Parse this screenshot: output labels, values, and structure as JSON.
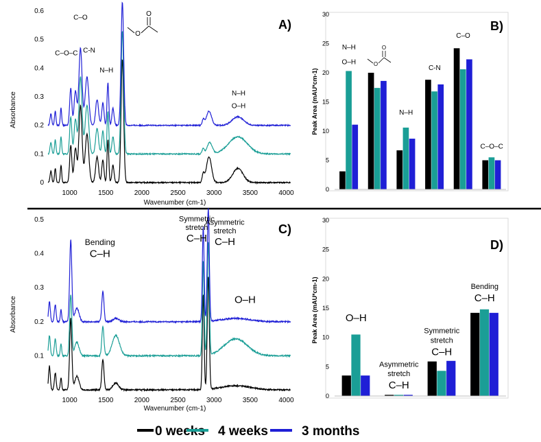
{
  "colors": {
    "s0": "#000000",
    "s1": "#1a9e96",
    "s2": "#1f1fd6"
  },
  "legend": [
    {
      "label": "0 weeks",
      "color": "#000000"
    },
    {
      "label": "4 weeks",
      "color": "#1a9e96"
    },
    {
      "label": "3 months",
      "color": "#1f1fd6"
    }
  ],
  "chart_data": [
    {
      "panel": "A)",
      "type": "line",
      "xlabel": "Wavenumber (cm-1)",
      "ylabel": "Absorbance",
      "xlim": [
        700,
        4100
      ],
      "ylim": [
        0,
        0.6
      ],
      "xticks": [
        1000,
        1500,
        2000,
        2500,
        3000,
        3500,
        4000
      ],
      "yticks": [
        0,
        0.1,
        0.2,
        0.3,
        0.4,
        0.5,
        0.6
      ],
      "ytick_labels": [
        "0",
        "0.1",
        "0.2",
        "0.3",
        "0.4",
        "0.5",
        "0.6"
      ],
      "series": [
        {
          "name": "0 weeks",
          "color": "#000000",
          "baseline": 0.0,
          "peaks": [
            [
              740,
              0.04,
              12
            ],
            [
              800,
              0.05,
              10
            ],
            [
              880,
              0.06,
              10
            ],
            [
              1015,
              0.13,
              15
            ],
            [
              1080,
              0.12,
              18
            ],
            [
              1150,
              0.27,
              22
            ],
            [
              1240,
              0.17,
              25
            ],
            [
              1380,
              0.09,
              20
            ],
            [
              1460,
              0.08,
              15
            ],
            [
              1530,
              0.15,
              12
            ],
            [
              1600,
              0.06,
              15
            ],
            [
              1730,
              0.43,
              18
            ],
            [
              2850,
              0.03,
              15
            ],
            [
              2930,
              0.09,
              35
            ],
            [
              3330,
              0.05,
              70
            ]
          ]
        },
        {
          "name": "4 weeks",
          "color": "#1a9e96",
          "baseline": 0.1,
          "peaks": [
            [
              740,
              0.04,
              12
            ],
            [
              800,
              0.05,
              10
            ],
            [
              880,
              0.06,
              10
            ],
            [
              1015,
              0.13,
              15
            ],
            [
              1080,
              0.12,
              18
            ],
            [
              1150,
              0.27,
              22
            ],
            [
              1240,
              0.17,
              25
            ],
            [
              1380,
              0.09,
              20
            ],
            [
              1460,
              0.08,
              15
            ],
            [
              1530,
              0.15,
              12
            ],
            [
              1600,
              0.06,
              15
            ],
            [
              1730,
              0.43,
              18
            ],
            [
              2850,
              0.02,
              15
            ],
            [
              2940,
              0.04,
              35
            ],
            [
              3330,
              0.06,
              130
            ]
          ]
        },
        {
          "name": "3 months",
          "color": "#1f1fd6",
          "baseline": 0.2,
          "peaks": [
            [
              740,
              0.04,
              12
            ],
            [
              800,
              0.05,
              10
            ],
            [
              880,
              0.06,
              10
            ],
            [
              1015,
              0.13,
              15
            ],
            [
              1080,
              0.12,
              18
            ],
            [
              1150,
              0.27,
              22
            ],
            [
              1240,
              0.17,
              25
            ],
            [
              1380,
              0.09,
              20
            ],
            [
              1460,
              0.08,
              15
            ],
            [
              1530,
              0.15,
              12
            ],
            [
              1600,
              0.06,
              15
            ],
            [
              1730,
              0.43,
              18
            ],
            [
              2850,
              0.02,
              15
            ],
            [
              2930,
              0.05,
              35
            ],
            [
              3330,
              0.03,
              80
            ]
          ]
        }
      ],
      "annotations": [
        {
          "text": "C–O",
          "x": 1150,
          "y": 0.57
        },
        {
          "text": "C-N",
          "x": 1270,
          "y": 0.455
        },
        {
          "text": "C–O–C",
          "x": 955,
          "y": 0.445
        },
        {
          "text": "N–H",
          "x": 1510,
          "y": 0.385
        },
        {
          "text": "N–H",
          "x": 3340,
          "y": 0.305
        },
        {
          "text": "O–H",
          "x": 3340,
          "y": 0.26
        }
      ]
    },
    {
      "panel": "B)",
      "type": "bar",
      "ylabel": "Peak Area (mAU*cm-1)",
      "ylim": [
        0,
        30
      ],
      "yticks": [
        0,
        5,
        10,
        15,
        20,
        25,
        30
      ],
      "categories": [
        "N–H / O–H",
        "ester",
        "N–H",
        "C-N",
        "C–O",
        "C–O–C"
      ],
      "group_labels": [
        {
          "lines": [
            "N–H",
            "O–H"
          ],
          "y": [
            24,
            21.5
          ]
        },
        {
          "lines": [],
          "y": []
        },
        {
          "lines": [
            "N–H"
          ],
          "y": [
            12.8
          ]
        },
        {
          "lines": [
            "C-N"
          ],
          "y": [
            20.5
          ]
        },
        {
          "lines": [
            "C–O"
          ],
          "y": [
            26
          ]
        },
        {
          "lines": [
            "C–O–C"
          ],
          "y": [
            7
          ]
        }
      ],
      "series": [
        {
          "name": "0 weeks",
          "values": [
            3.1,
            20.0,
            6.7,
            18.8,
            24.2,
            5.0
          ]
        },
        {
          "name": "4 weeks",
          "values": [
            20.3,
            17.4,
            10.6,
            16.8,
            20.6,
            5.5
          ]
        },
        {
          "name": "3 months",
          "values": [
            11.1,
            18.6,
            8.7,
            18.0,
            22.3,
            5.0
          ]
        }
      ]
    },
    {
      "panel": "C)",
      "type": "line",
      "xlabel": "Wavenumber (cm-1)",
      "ylabel": "Absorbance",
      "xlim": [
        700,
        4100
      ],
      "ylim": [
        0,
        0.5
      ],
      "xticks": [
        1000,
        1500,
        2000,
        2500,
        3000,
        3500,
        4000
      ],
      "yticks": [
        0.1,
        0.2,
        0.3,
        0.4,
        0.5
      ],
      "ytick_labels": [
        "0.1",
        "0.2",
        "0.3",
        "0.4",
        "0.5"
      ],
      "series": [
        {
          "name": "0 weeks",
          "color": "#000000",
          "baseline": 0.0,
          "peaks": [
            [
              720,
              0.07,
              12
            ],
            [
              800,
              0.05,
              12
            ],
            [
              880,
              0.035,
              10
            ],
            [
              1015,
              0.21,
              15
            ],
            [
              1100,
              0.04,
              30
            ],
            [
              1460,
              0.09,
              15
            ],
            [
              1640,
              0.02,
              40
            ],
            [
              2850,
              0.28,
              12
            ],
            [
              2920,
              0.33,
              14
            ],
            [
              3300,
              0.012,
              200
            ]
          ]
        },
        {
          "name": "4 weeks",
          "color": "#1a9e96",
          "baseline": 0.1,
          "peaks": [
            [
              720,
              0.06,
              12
            ],
            [
              800,
              0.05,
              12
            ],
            [
              880,
              0.035,
              10
            ],
            [
              1015,
              0.18,
              15
            ],
            [
              1100,
              0.04,
              30
            ],
            [
              1460,
              0.085,
              15
            ],
            [
              1640,
              0.06,
              50
            ],
            [
              2850,
              0.28,
              12
            ],
            [
              2920,
              0.33,
              14
            ],
            [
              3300,
              0.05,
              160
            ]
          ]
        },
        {
          "name": "3 months",
          "color": "#1f1fd6",
          "baseline": 0.2,
          "peaks": [
            [
              720,
              0.06,
              12
            ],
            [
              800,
              0.05,
              12
            ],
            [
              880,
              0.035,
              10
            ],
            [
              1015,
              0.24,
              15
            ],
            [
              1100,
              0.04,
              30
            ],
            [
              1460,
              0.09,
              15
            ],
            [
              1640,
              0.01,
              40
            ],
            [
              2850,
              0.28,
              12
            ],
            [
              2920,
              0.33,
              14
            ],
            [
              3300,
              0.01,
              200
            ]
          ]
        }
      ],
      "annotations": [
        {
          "text": "Bending",
          "x": 1420,
          "y": 0.425,
          "size": 12
        },
        {
          "text": "C–H",
          "x": 1420,
          "y": 0.39,
          "size": 15
        },
        {
          "text": "Symmetric",
          "x": 2760,
          "y": 0.495,
          "size": 11
        },
        {
          "text": "stretch",
          "x": 2760,
          "y": 0.47,
          "size": 11
        },
        {
          "text": "C–H",
          "x": 2760,
          "y": 0.435,
          "size": 15
        },
        {
          "text": "Asymmetric",
          "x": 3150,
          "y": 0.485,
          "size": 11
        },
        {
          "text": "stretch",
          "x": 3150,
          "y": 0.46,
          "size": 11
        },
        {
          "text": "C–H",
          "x": 3150,
          "y": 0.425,
          "size": 15
        },
        {
          "text": "O–H",
          "x": 3430,
          "y": 0.255,
          "size": 15
        }
      ]
    },
    {
      "panel": "D)",
      "type": "bar",
      "ylabel": "Peak Area (mAU*cm-1)",
      "ylim": [
        0,
        30
      ],
      "yticks": [
        0,
        5,
        10,
        15,
        20,
        25,
        30
      ],
      "categories": [
        "O–H",
        "Asymmetric stretch C–H",
        "Symmetric stretch C–H",
        "Bending C–H"
      ],
      "group_labels": [
        {
          "lines": [
            "O–H"
          ],
          "y": [
            12.8
          ],
          "sizes": [
            15
          ]
        },
        {
          "lines": [
            "Asymmetric",
            "stretch",
            "C–H"
          ],
          "y": [
            5,
            3.4,
            1.3
          ],
          "sizes": [
            11,
            11,
            15
          ]
        },
        {
          "lines": [
            "Symmetric",
            "stretch",
            "C–H"
          ],
          "y": [
            10.7,
            9.1,
            7.0
          ],
          "sizes": [
            11,
            11,
            15
          ]
        },
        {
          "lines": [
            "Bending",
            "C–H"
          ],
          "y": [
            18.3,
            16.2
          ],
          "sizes": [
            11,
            15
          ]
        }
      ],
      "series": [
        {
          "name": "0 weeks",
          "values": [
            3.5,
            0.2,
            5.9,
            14.2
          ]
        },
        {
          "name": "4 weeks",
          "values": [
            10.5,
            0.2,
            4.3,
            14.8
          ]
        },
        {
          "name": "3 months",
          "values": [
            3.5,
            0.2,
            6.0,
            14.2
          ]
        }
      ]
    }
  ]
}
